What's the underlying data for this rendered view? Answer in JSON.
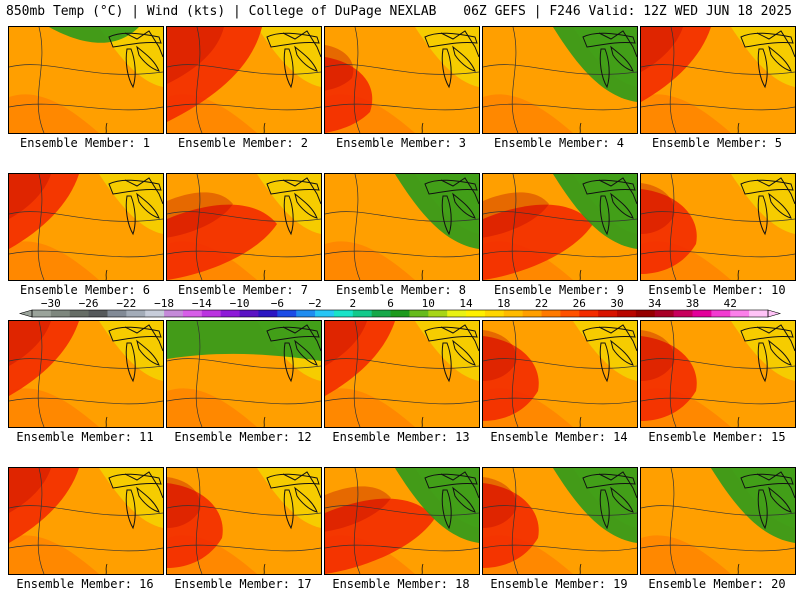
{
  "header": {
    "left": "850mb Temp (°C) | Wind (kts) | College of DuPage NEXLAB",
    "right": "06Z GEFS | F246 Valid: 12Z WED JUN 18 2025"
  },
  "member_prefix": "Ensemble Member: ",
  "members": [
    {
      "label": "1",
      "field": "temperature",
      "hot_spot": "none",
      "cool_spot": "north-central lakes"
    },
    {
      "label": "2",
      "field": "temperature",
      "hot_spot": "west-central plains",
      "cool_spot": "none"
    },
    {
      "label": "3",
      "field": "temperature",
      "hot_spot": "western plains",
      "cool_spot": "none"
    },
    {
      "label": "4",
      "field": "temperature",
      "hot_spot": "none",
      "cool_spot": "northeast"
    },
    {
      "label": "5",
      "field": "temperature",
      "hot_spot": "northwest",
      "cool_spot": "none"
    },
    {
      "label": "6",
      "field": "temperature",
      "hot_spot": "northwest",
      "cool_spot": "none"
    },
    {
      "label": "7",
      "field": "temperature",
      "hot_spot": "southwest",
      "cool_spot": "none"
    },
    {
      "label": "8",
      "field": "temperature",
      "hot_spot": "none",
      "cool_spot": "northeast"
    },
    {
      "label": "9",
      "field": "temperature",
      "hot_spot": "southwest",
      "cool_spot": "northeast"
    },
    {
      "label": "10",
      "field": "temperature",
      "hot_spot": "west",
      "cool_spot": "none"
    },
    {
      "label": "11",
      "field": "temperature",
      "hot_spot": "northwest",
      "cool_spot": "none"
    },
    {
      "label": "12",
      "field": "temperature",
      "hot_spot": "none",
      "cool_spot": "north"
    },
    {
      "label": "13",
      "field": "temperature",
      "hot_spot": "northwest",
      "cool_spot": "none"
    },
    {
      "label": "14",
      "field": "temperature",
      "hot_spot": "west",
      "cool_spot": "none"
    },
    {
      "label": "15",
      "field": "temperature",
      "hot_spot": "west",
      "cool_spot": "none"
    },
    {
      "label": "16",
      "field": "temperature",
      "hot_spot": "northwest",
      "cool_spot": "none"
    },
    {
      "label": "17",
      "field": "temperature",
      "hot_spot": "west",
      "cool_spot": "none"
    },
    {
      "label": "18",
      "field": "temperature",
      "hot_spot": "southwest",
      "cool_spot": "northeast"
    },
    {
      "label": "19",
      "field": "temperature",
      "hot_spot": "west",
      "cool_spot": "northeast"
    },
    {
      "label": "20",
      "field": "temperature",
      "hot_spot": "none",
      "cool_spot": "northeast"
    }
  ],
  "colorbar": {
    "labels": [
      "-30",
      "-26",
      "-22",
      "-18",
      "-14",
      "-10",
      "-6",
      "-2",
      "2",
      "6",
      "10",
      "14",
      "18",
      "22",
      "26",
      "30",
      "34",
      "38",
      "42"
    ],
    "colors": [
      "#9aa39a",
      "#7e877e",
      "#666d66",
      "#55595b",
      "#818a96",
      "#a3acb8",
      "#c7cdda",
      "#c58ad9",
      "#d75ee8",
      "#bb33e0",
      "#8e1ad8",
      "#5b13c4",
      "#2b16c2",
      "#1b4ce6",
      "#1f8df0",
      "#26c6f5",
      "#18e3c8",
      "#13c98b",
      "#16a84a",
      "#1d9a1d",
      "#66bb1d",
      "#a7d516",
      "#e9f213",
      "#fff000",
      "#ffd600",
      "#ffbb00",
      "#ff9f00",
      "#ff7a00",
      "#ff5100",
      "#f32b00",
      "#d81300",
      "#b80600",
      "#950000",
      "#a80026",
      "#c7005c",
      "#e3009a",
      "#f23bd1",
      "#fb7fea",
      "#ffc3f7"
    ]
  },
  "colors": {
    "cool_green": "#2f9a1b",
    "yellow": "#f5d400",
    "orange": "#ff9f00",
    "dark_orange": "#ff7a00",
    "red": "#f32b00",
    "deep_red": "#b80600"
  }
}
